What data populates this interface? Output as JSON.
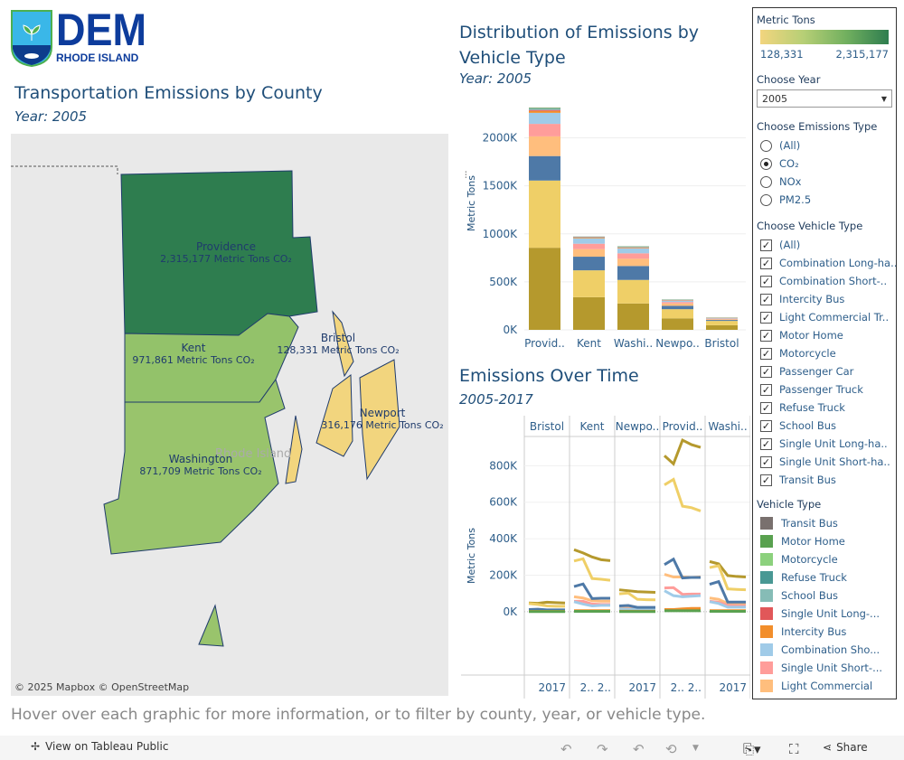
{
  "logo": {
    "text": "DEM",
    "subtext": "RHODE ISLAND"
  },
  "map": {
    "title": "Transportation Emissions by County",
    "subtitle": "Year: 2005",
    "attribution": "© 2025 Mapbox  © OpenStreetMap",
    "state_label": "Rhode Island",
    "counties": [
      {
        "name": "Providence",
        "value": "2,315,177 Metric Tons CO₂",
        "color": "#2e7d4f"
      },
      {
        "name": "Kent",
        "value": "971,861 Metric Tons CO₂",
        "color": "#93c26a"
      },
      {
        "name": "Washington",
        "value": "871,709 Metric Tons CO₂",
        "color": "#99c46c"
      },
      {
        "name": "Bristol",
        "value": "128,331 Metric Tons CO₂",
        "color": "#f2d57e"
      },
      {
        "name": "Newport",
        "value": "316,176 Metric Tons CO₂",
        "color": "#f2d57e"
      }
    ]
  },
  "bar": {
    "title": "Distribution of Emissions by Vehicle Type",
    "subtitle": "Year: 2005",
    "ylabel": "Metric Tons"
  },
  "line": {
    "title": "Emissions Over Time",
    "subtitle": "2005-2017",
    "ylabel": "Metric Tons",
    "panels": [
      "Bristol",
      "Kent",
      "Newpo..",
      "Provid..",
      "Washi.."
    ],
    "xlabels": [
      "2017",
      "2.. 2..",
      "2017",
      "2.. 2..",
      "2017"
    ]
  },
  "chart_data": [
    {
      "type": "bar",
      "stacked": true,
      "categories": [
        "Provid..",
        "Kent",
        "Washi..",
        "Newpo..",
        "Bristol"
      ],
      "ylabel": "Metric Tons",
      "ylim": [
        0,
        2400000
      ],
      "yticks": [
        "0K",
        "500K",
        "1000K",
        "1500K",
        "2000K"
      ],
      "grid": true,
      "series": [
        {
          "color": "#b5992d",
          "values": [
            855000,
            340000,
            275000,
            120000,
            48000
          ]
        },
        {
          "color": "#efcf67",
          "values": [
            700000,
            280000,
            245000,
            95000,
            45000
          ]
        },
        {
          "color": "#4e79a7",
          "values": [
            255000,
            142000,
            145000,
            35000,
            10000
          ]
        },
        {
          "color": "#ffbe7d",
          "values": [
            205000,
            78000,
            75000,
            25000,
            8000
          ]
        },
        {
          "color": "#ff9d9a",
          "values": [
            130000,
            57000,
            57000,
            15000,
            6000
          ]
        },
        {
          "color": "#a0cbe8",
          "values": [
            115000,
            57000,
            52000,
            15000,
            5000
          ]
        },
        {
          "color": "#f28e2b",
          "values": [
            20000,
            6000,
            6000,
            4000,
            2000
          ]
        },
        {
          "color": "#e15759",
          "values": [
            10000,
            4000,
            4000,
            2000,
            1000
          ]
        },
        {
          "color": "#86bcb6",
          "values": [
            8000,
            3000,
            4000,
            2000,
            1000
          ]
        },
        {
          "color": "#499894",
          "values": [
            7000,
            2000,
            3000,
            1000,
            1000
          ]
        },
        {
          "color": "#8cd17d",
          "values": [
            5000,
            1000,
            2000,
            1000,
            1000
          ]
        },
        {
          "color": "#59a14f",
          "values": [
            3000,
            1000,
            2000,
            1000,
            500
          ]
        },
        {
          "color": "#79706e",
          "values": [
            3000,
            1000,
            1000,
            1000,
            500
          ]
        }
      ]
    },
    {
      "type": "line",
      "facets": [
        "Bristol",
        "Kent",
        "Newpo..",
        "Provid..",
        "Washi.."
      ],
      "x": [
        2005,
        2008,
        2011,
        2014,
        2017
      ],
      "ylabel": "Metric Tons",
      "ylim": [
        -40000,
        960000
      ],
      "yticks": [
        "0K",
        "200K",
        "400K",
        "600K",
        "800K"
      ],
      "grid": true,
      "series": [
        {
          "color": "#b5992d",
          "values": [
            [
              48,
              46,
              52,
              50,
              48
            ],
            [
              340,
              322,
              300,
              285,
              280
            ],
            [
              120,
              115,
              110,
              108,
              106
            ],
            [
              855,
              810,
              940,
              915,
              900
            ],
            [
              275,
              262,
              198,
              193,
              190
            ]
          ]
        },
        {
          "color": "#efcf67",
          "values": [
            [
              45,
              40,
              32,
              30,
              30
            ],
            [
              278,
              290,
              182,
              178,
              172
            ],
            [
              98,
              102,
              68,
              66,
              65
            ],
            [
              695,
              725,
              578,
              570,
              552
            ],
            [
              242,
              252,
              125,
              122,
              120
            ]
          ]
        },
        {
          "color": "#ffbe7d",
          "values": [
            [
              8,
              7,
              6,
              6,
              6
            ],
            [
              82,
              75,
              60,
              58,
              58
            ],
            [
              25,
              22,
              18,
              18,
              18
            ],
            [
              205,
              190,
              190,
              188,
              190
            ],
            [
              75,
              68,
              45,
              45,
              45
            ]
          ]
        },
        {
          "color": "#ff9d9a",
          "values": [
            [
              6,
              6,
              6,
              6,
              6
            ],
            [
              57,
              57,
              42,
              40,
              40
            ],
            [
              15,
              15,
              12,
              12,
              12
            ],
            [
              130,
              132,
              95,
              97,
              97
            ],
            [
              57,
              52,
              35,
              33,
              33
            ]
          ]
        },
        {
          "color": "#a0cbe8",
          "values": [
            [
              5,
              5,
              5,
              5,
              5
            ],
            [
              55,
              42,
              32,
              35,
              35
            ],
            [
              15,
              13,
              12,
              12,
              12
            ],
            [
              115,
              88,
              82,
              85,
              88
            ],
            [
              55,
              45,
              25,
              25,
              25
            ]
          ]
        },
        {
          "color": "#4e79a7",
          "values": [
            [
              12,
              14,
              10,
              10,
              10
            ],
            [
              138,
              152,
              72,
              74,
              74
            ],
            [
              32,
              34,
              24,
              24,
              24
            ],
            [
              258,
              288,
              185,
              188,
              188
            ],
            [
              150,
              165,
              53,
              53,
              53
            ]
          ]
        },
        {
          "color": "#f28e2b",
          "values": [
            [
              2,
              2,
              2,
              2,
              2
            ],
            [
              6,
              6,
              6,
              6,
              6
            ],
            [
              3,
              3,
              3,
              3,
              3
            ],
            [
              12,
              12,
              16,
              18,
              18
            ],
            [
              6,
              6,
              6,
              6,
              6
            ]
          ]
        },
        {
          "color": "#59a14f",
          "values": [
            [
              1,
              1,
              1,
              1,
              1
            ],
            [
              2,
              2,
              2,
              2,
              2
            ],
            [
              1,
              1,
              1,
              1,
              1
            ],
            [
              5,
              5,
              5,
              5,
              5
            ],
            [
              2,
              2,
              2,
              2,
              2
            ]
          ]
        }
      ]
    }
  ],
  "panel": {
    "legend_title": "Metric Tons",
    "legend_min": "128,331",
    "legend_max": "2,315,177",
    "year_label": "Choose Year",
    "year_value": "2005",
    "emis_label": "Choose Emissions Type",
    "emis_options": [
      "(All)",
      "CO₂",
      "NOx",
      "PM2.5"
    ],
    "emis_selected": 1,
    "veh_label": "Choose Vehicle Type",
    "veh_options": [
      "(All)",
      "Combination Long-ha..",
      "Combination Short-..",
      "Intercity Bus",
      "Light Commercial Tr..",
      "Motor Home",
      "Motorcycle",
      "Passenger Car",
      "Passenger Truck",
      "Refuse Truck",
      "School Bus",
      "Single Unit Long-ha..",
      "Single Unit Short-ha..",
      "Transit Bus"
    ],
    "vt_label": "Vehicle Type",
    "vt_items": [
      {
        "label": "Transit Bus",
        "color": "#79706e"
      },
      {
        "label": "Motor Home",
        "color": "#59a14f"
      },
      {
        "label": "Motorcycle",
        "color": "#8cd17d"
      },
      {
        "label": "Refuse Truck",
        "color": "#499894"
      },
      {
        "label": "School Bus",
        "color": "#86bcb6"
      },
      {
        "label": "Single Unit Long-...",
        "color": "#e15759"
      },
      {
        "label": "Intercity Bus",
        "color": "#f28e2b"
      },
      {
        "label": "Combination Sho...",
        "color": "#a0cbe8"
      },
      {
        "label": "Single Unit Short-...",
        "color": "#ff9d9a"
      },
      {
        "label": "Light Commercial",
        "color": "#ffbe7d"
      }
    ]
  },
  "footer_note": "Hover over each graphic for more information, or to filter by county, year, or vehicle type.",
  "toolbar": {
    "view_label": "View on Tableau Public",
    "share_label": "Share"
  }
}
